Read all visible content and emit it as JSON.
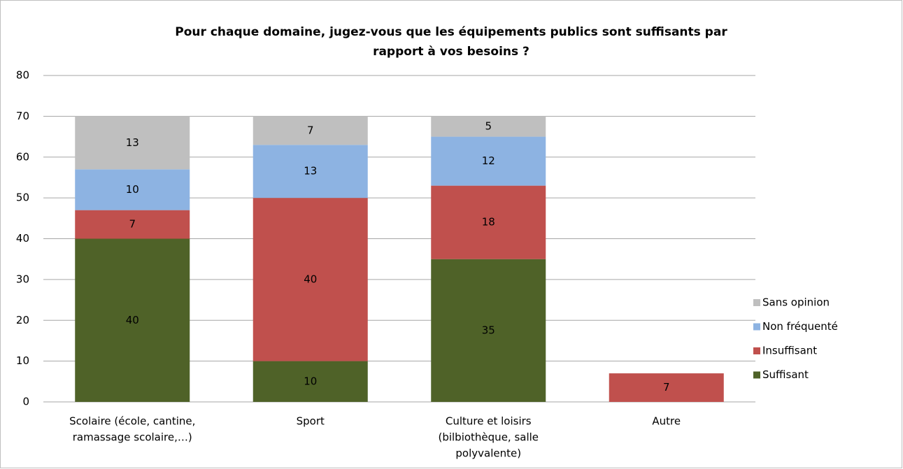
{
  "chart_data": {
    "type": "stacked_bar",
    "title": [
      "Pour chaque domaine, jugez-vous que les équipements publics sont suffisants par",
      "rapport à vos besoins ?"
    ],
    "categories": [
      [
        "Scolaire (école, cantine,",
        "ramassage scolaire,…)"
      ],
      [
        "Sport"
      ],
      [
        "Culture et loisirs",
        "(bilbiothèque, salle",
        "polyvalente)"
      ],
      [
        "Autre"
      ]
    ],
    "series": [
      {
        "name": "Suffisant",
        "color": "#4f6228",
        "values": [
          40,
          10,
          35,
          null
        ]
      },
      {
        "name": "Insuffisant",
        "color": "#c0504d",
        "values": [
          7,
          40,
          18,
          7
        ]
      },
      {
        "name": "Non fréquenté",
        "color": "#8db3e2",
        "values": [
          10,
          13,
          12,
          null
        ]
      },
      {
        "name": "Sans opinion",
        "color": "#bfbfbf",
        "values": [
          13,
          7,
          5,
          null
        ]
      }
    ],
    "ylim": [
      0,
      80
    ],
    "yticks": [
      0,
      10,
      20,
      30,
      40,
      50,
      60,
      70,
      80
    ],
    "grid": true,
    "legend": "right"
  }
}
